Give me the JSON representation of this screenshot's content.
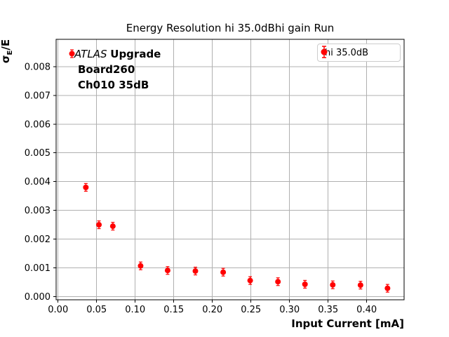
{
  "chart_data": {
    "type": "scatter",
    "title": "Energy Resolution hi 35.0dBhi gain Run",
    "xlabel": "Input Current [mA]",
    "ylabel": "sigma_E/E",
    "ylabel_parts": {
      "sigma": "σ",
      "sub": "E",
      "rest": "/E"
    },
    "annotation": {
      "line1_italic": "ATLAS",
      "line1_bold": "Upgrade",
      "line2": "Board260",
      "line3": "Ch010 35dB"
    },
    "legend_label": "hi 35.0dB",
    "legend_position": "upper right",
    "series": [
      {
        "name": "hi 35.0dB",
        "color": "#ff0000",
        "marker": "circle-with-errorbar",
        "x": [
          0.018,
          0.036,
          0.053,
          0.071,
          0.107,
          0.142,
          0.178,
          0.214,
          0.249,
          0.285,
          0.32,
          0.356,
          0.392,
          0.427
        ],
        "y": [
          0.00845,
          0.0038,
          0.0025,
          0.00245,
          0.00107,
          0.00091,
          0.00089,
          0.00085,
          0.00056,
          0.00052,
          0.00043,
          0.00041,
          0.0004,
          0.00029
        ]
      }
    ],
    "xlim": [
      -0.0025,
      0.4485
    ],
    "ylim": [
      -0.00011,
      0.00895
    ],
    "xticks": [
      0.0,
      0.05,
      0.1,
      0.15,
      0.2,
      0.25,
      0.3,
      0.35,
      0.4
    ],
    "xtick_labels": [
      "0.00",
      "0.05",
      "0.10",
      "0.15",
      "0.20",
      "0.25",
      "0.30",
      "0.35",
      "0.40"
    ],
    "yticks": [
      0.0,
      0.001,
      0.002,
      0.003,
      0.004,
      0.005,
      0.006,
      0.007,
      0.008
    ],
    "ytick_labels": [
      "0.000",
      "0.001",
      "0.002",
      "0.003",
      "0.004",
      "0.005",
      "0.006",
      "0.007",
      "0.008"
    ],
    "grid": true,
    "grid_color": "#b0b0b0",
    "axes_edge_color": "#000000",
    "background": "#ffffff"
  }
}
